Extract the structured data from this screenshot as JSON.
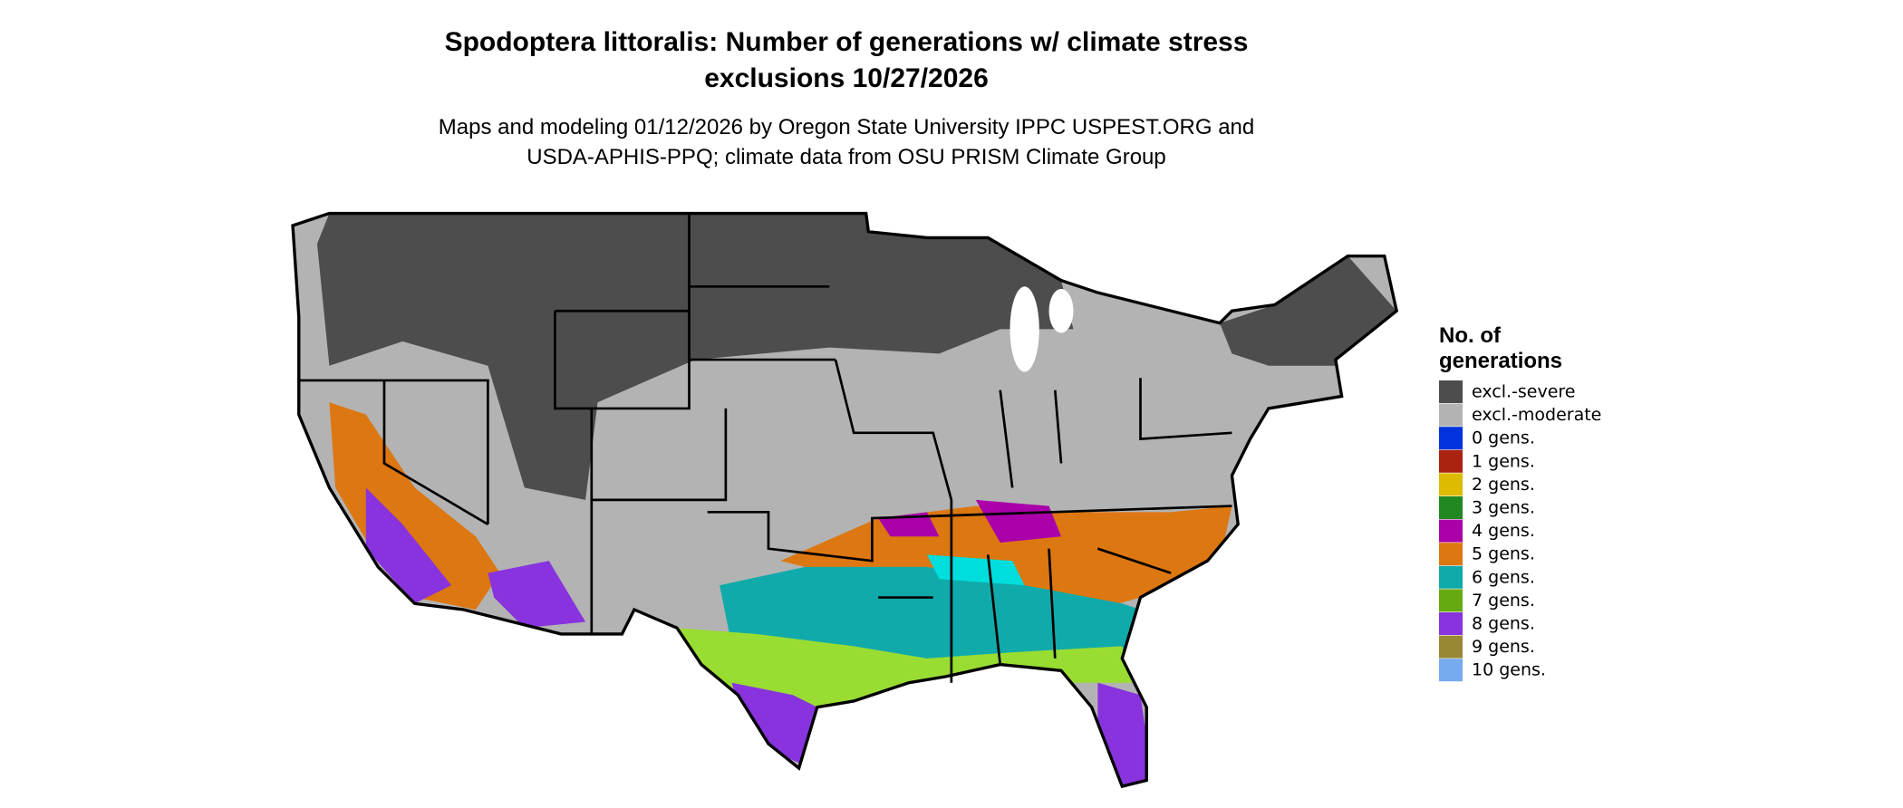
{
  "title": [
    "Spodoptera littoralis: Number of generations w/ climate stress",
    "exclusions 10/27/2026"
  ],
  "subtitle": [
    "Maps and modeling 01/12/2026 by Oregon State University IPPC USPEST.ORG and",
    "USDA-APHIS-PPQ; climate data from OSU PRISM Climate Group"
  ],
  "legend": {
    "title": [
      "No. of",
      "generations"
    ],
    "items": [
      {
        "label": "excl.-severe",
        "color": "#4d4d4d"
      },
      {
        "label": "excl.-moderate",
        "color": "#b3b3b3"
      },
      {
        "label": "0 gens.",
        "color": "#0033dd"
      },
      {
        "label": "1 gens.",
        "color": "#aa2211"
      },
      {
        "label": "2 gens.",
        "color": "#ddbb00"
      },
      {
        "label": "3 gens.",
        "color": "#228822"
      },
      {
        "label": "4 gens.",
        "color": "#aa00aa"
      },
      {
        "label": "5 gens.",
        "color": "#dd7711"
      },
      {
        "label": "6 gens.",
        "color": "#11aaaa"
      },
      {
        "label": "7 gens.",
        "color": "#66aa11"
      },
      {
        "label": "8 gens.",
        "color": "#8833dd"
      },
      {
        "label": "9 gens.",
        "color": "#998833"
      },
      {
        "label": "10 gens.",
        "color": "#77aaee"
      }
    ]
  }
}
